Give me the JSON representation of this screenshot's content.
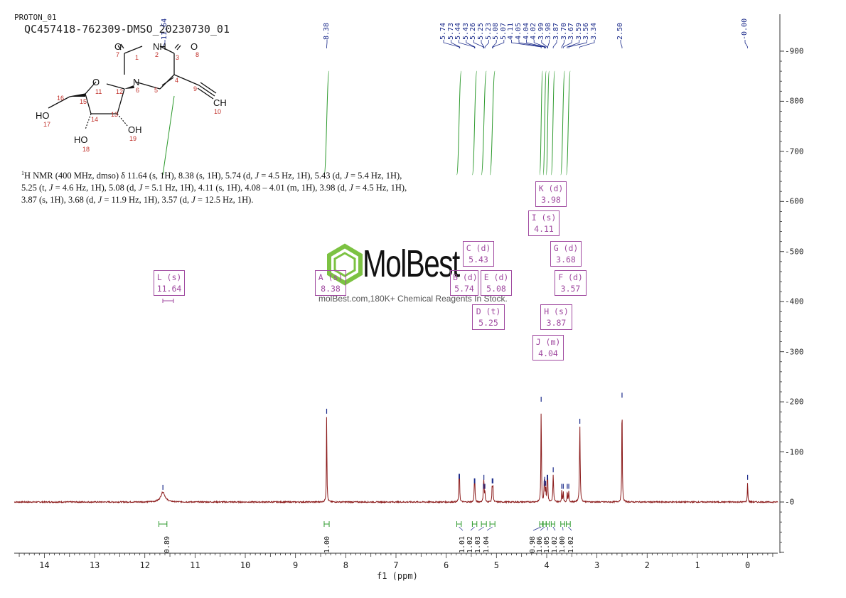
{
  "header": {
    "experiment": "PROTON_01",
    "sample": "QC457418-762309-DMSO_20230730_01"
  },
  "summary": {
    "nucleus_sup": "1",
    "part1": "H NMR (400 MHz, dmso) δ 11.64 (s, 1H), 8.38 (s, 1H), 5.74 (d, ",
    "j1": "J",
    "part2": " = 4.5 Hz, 1H), 5.43 (d, ",
    "j2": "J",
    "part3": " = 5.4 Hz, 1H), 5.25 (t, ",
    "j3": "J",
    "part4": " = 4.6 Hz, 1H), 5.08 (d, ",
    "j4": "J",
    "part5": " = 5.1 Hz, 1H), 4.11 (s, 1H), 4.08 – 4.01 (m, 1H), 3.98 (d, ",
    "j5": "J",
    "part6": " = 4.5 Hz, 1H), 3.87 (s, 1H), 3.68 (d, ",
    "j6": "J",
    "part7": " = 11.9 Hz, 1H), 3.57 (d, ",
    "j7": "J",
    "part8": " = 12.5 Hz, 1H)."
  },
  "watermark": {
    "brand": "MolBest",
    "tagline": "molBest.com,180K+ Chemical Reagents In Stock."
  },
  "molecule": {
    "atoms": [
      "O",
      "NH",
      "O",
      "O",
      "N",
      "HO",
      "HO",
      "OH",
      "CH"
    ],
    "numbers": [
      "7",
      "1",
      "2",
      "3",
      "8",
      "11",
      "12",
      "6",
      "5",
      "4",
      "9",
      "16",
      "15",
      "13",
      "14",
      "10",
      "17",
      "18",
      "19"
    ]
  },
  "peak_boxes": [
    {
      "id": "L",
      "mult": "(s)",
      "shift": "11.64"
    },
    {
      "id": "A",
      "mult": "(s)",
      "shift": "8.38"
    },
    {
      "id": "B",
      "mult": "(d)",
      "shift": "5.74"
    },
    {
      "id": "C",
      "mult": "(d)",
      "shift": "5.43"
    },
    {
      "id": "D",
      "mult": "(t)",
      "shift": "5.25"
    },
    {
      "id": "E",
      "mult": "(d)",
      "shift": "5.08"
    },
    {
      "id": "I",
      "mult": "(s)",
      "shift": "4.11"
    },
    {
      "id": "J",
      "mult": "(m)",
      "shift": "4.04"
    },
    {
      "id": "K",
      "mult": "(d)",
      "shift": "3.98"
    },
    {
      "id": "H",
      "mult": "(s)",
      "shift": "3.87"
    },
    {
      "id": "G",
      "mult": "(d)",
      "shift": "3.68"
    },
    {
      "id": "F",
      "mult": "(d)",
      "shift": "3.57"
    }
  ],
  "shift_labels": [
    "11.64",
    "8.38",
    "5.74",
    "5.73",
    "5.44",
    "5.43",
    "5.26",
    "5.25",
    "5.23",
    "5.08",
    "5.07",
    "4.11",
    "4.05",
    "4.04",
    "4.02",
    "3.99",
    "3.98",
    "3.87",
    "3.70",
    "3.67",
    "3.59",
    "3.56",
    "3.34",
    "2.50",
    "-0.00"
  ],
  "integrals": [
    "0.89",
    "1.00",
    "1.01",
    "1.02",
    "1.03",
    "1.04",
    "0.98",
    "1.06",
    "1.05",
    "1.02",
    "1.00",
    "1.02"
  ],
  "colors": {
    "spectrum": "#8b1a1a",
    "integral": "#2e9a2e",
    "peak_tick": "#1a2a8a",
    "box": "#a04aa0",
    "watermark_icon": "#7cc242"
  },
  "chart_data": {
    "type": "line",
    "title": "",
    "xlabel": "f1 (ppm)",
    "ylabel": "",
    "xlim": [
      14.6,
      -0.6
    ],
    "ylim": [
      -100,
      970
    ],
    "x_reversed": true,
    "x_ticks": [
      "14",
      "13",
      "12",
      "11",
      "10",
      "9",
      "8",
      "7",
      "6",
      "5",
      "4",
      "3",
      "2",
      "1",
      "0"
    ],
    "y_ticks": [
      "-900",
      "-800",
      "-700",
      "-600",
      "-500",
      "-400",
      "-300",
      "-200",
      "-100",
      "-0"
    ],
    "peaks": [
      {
        "ppm": 11.64,
        "height": 20,
        "width": 0.05
      },
      {
        "ppm": 8.38,
        "height": 172,
        "width": 0.006
      },
      {
        "ppm": 5.745,
        "height": 42,
        "width": 0.006
      },
      {
        "ppm": 5.735,
        "height": 42,
        "width": 0.006
      },
      {
        "ppm": 5.44,
        "height": 33,
        "width": 0.006
      },
      {
        "ppm": 5.43,
        "height": 33,
        "width": 0.006
      },
      {
        "ppm": 5.26,
        "height": 22,
        "width": 0.006
      },
      {
        "ppm": 5.25,
        "height": 40,
        "width": 0.006
      },
      {
        "ppm": 5.23,
        "height": 22,
        "width": 0.006
      },
      {
        "ppm": 5.085,
        "height": 33,
        "width": 0.006
      },
      {
        "ppm": 5.07,
        "height": 33,
        "width": 0.006
      },
      {
        "ppm": 4.11,
        "height": 196,
        "width": 0.006
      },
      {
        "ppm": 4.05,
        "height": 28,
        "width": 0.006
      },
      {
        "ppm": 4.04,
        "height": 36,
        "width": 0.006
      },
      {
        "ppm": 4.02,
        "height": 28,
        "width": 0.006
      },
      {
        "ppm": 3.99,
        "height": 40,
        "width": 0.006
      },
      {
        "ppm": 3.98,
        "height": 40,
        "width": 0.006
      },
      {
        "ppm": 3.87,
        "height": 55,
        "width": 0.008
      },
      {
        "ppm": 3.7,
        "height": 22,
        "width": 0.006
      },
      {
        "ppm": 3.67,
        "height": 22,
        "width": 0.006
      },
      {
        "ppm": 3.59,
        "height": 22,
        "width": 0.006
      },
      {
        "ppm": 3.56,
        "height": 22,
        "width": 0.006
      },
      {
        "ppm": 3.34,
        "height": 152,
        "width": 0.008
      },
      {
        "ppm": 2.5,
        "height": 204,
        "width": 0.006
      },
      {
        "ppm": 0.0,
        "height": 40,
        "width": 0.006
      }
    ],
    "integral_regions": [
      {
        "from": 11.72,
        "to": 11.56,
        "value": "0.89"
      },
      {
        "from": 8.43,
        "to": 8.33,
        "value": "1.00"
      },
      {
        "from": 5.79,
        "to": 5.7,
        "value": "1.01"
      },
      {
        "from": 5.48,
        "to": 5.39,
        "value": "1.02"
      },
      {
        "from": 5.3,
        "to": 5.2,
        "value": "1.03"
      },
      {
        "from": 5.13,
        "to": 5.03,
        "value": "1.04"
      },
      {
        "from": 4.14,
        "to": 4.08,
        "value": "0.98"
      },
      {
        "from": 4.07,
        "to": 4.01,
        "value": "1.06"
      },
      {
        "from": 4.01,
        "to": 3.95,
        "value": "1.05"
      },
      {
        "from": 3.91,
        "to": 3.84,
        "value": "1.02"
      },
      {
        "from": 3.72,
        "to": 3.64,
        "value": "1.00"
      },
      {
        "from": 3.61,
        "to": 3.53,
        "value": "1.02"
      }
    ]
  }
}
